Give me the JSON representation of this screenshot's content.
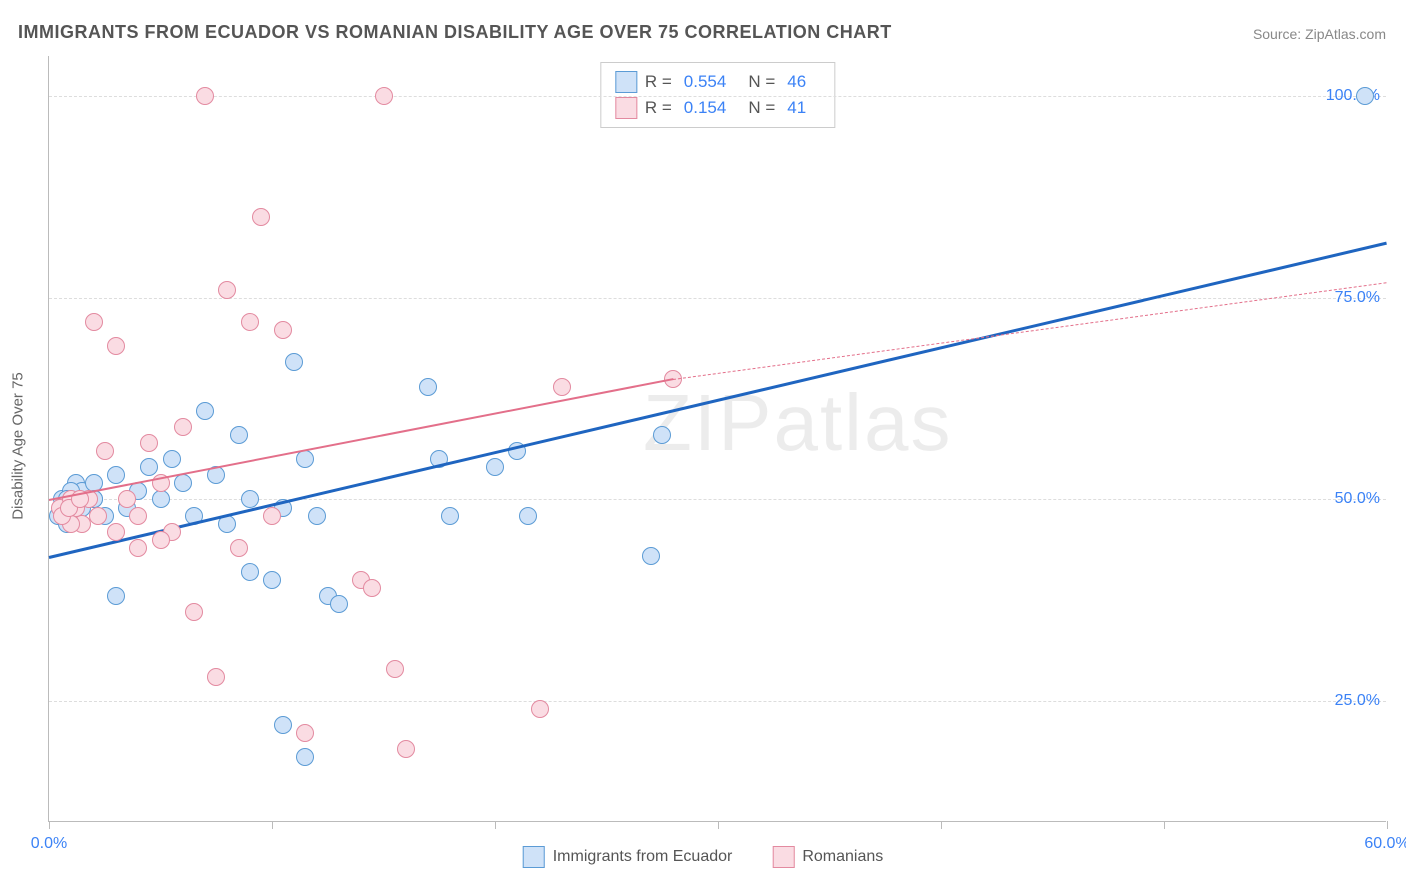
{
  "title": "IMMIGRANTS FROM ECUADOR VS ROMANIAN DISABILITY AGE OVER 75 CORRELATION CHART",
  "source_label": "Source:",
  "source_name": "ZipAtlas.com",
  "y_axis_label": "Disability Age Over 75",
  "watermark": "ZIPatlas",
  "chart": {
    "type": "scatter",
    "background_color": "#ffffff",
    "grid_color": "#dddddd",
    "axis_color": "#bbbbbb",
    "xlim": [
      0,
      60
    ],
    "ylim": [
      10,
      105
    ],
    "x_ticks": [
      0,
      10,
      20,
      30,
      40,
      50,
      60
    ],
    "x_tick_labels": {
      "0": "0.0%",
      "60": "60.0%"
    },
    "y_gridlines": [
      25,
      50,
      75,
      100
    ],
    "y_tick_labels": {
      "25": "25.0%",
      "50": "50.0%",
      "75": "75.0%",
      "100": "100.0%"
    },
    "tick_label_color": "#3b82f6",
    "tick_label_fontsize": 16,
    "axis_label_fontsize": 15,
    "point_radius": 9,
    "point_border_width": 1.5,
    "series": [
      {
        "name": "Immigrants from Ecuador",
        "fill": "#cfe2f8",
        "stroke": "#5b9bd5",
        "trend_color": "#1f65c0",
        "trend_width": 3,
        "trend_dash": "solid",
        "R": "0.554",
        "N": "46",
        "trend": {
          "x1": 0,
          "y1": 43,
          "x2": 60,
          "y2": 82
        },
        "points": [
          [
            0.4,
            48
          ],
          [
            0.6,
            50
          ],
          [
            0.8,
            47
          ],
          [
            1.0,
            49
          ],
          [
            1.2,
            52
          ],
          [
            1.5,
            51
          ],
          [
            2.0,
            50
          ],
          [
            2.5,
            48
          ],
          [
            2.0,
            52
          ],
          [
            3.0,
            53
          ],
          [
            3.5,
            49
          ],
          [
            4.0,
            51
          ],
          [
            4.5,
            54
          ],
          [
            5.0,
            50
          ],
          [
            5.5,
            55
          ],
          [
            3.0,
            38
          ],
          [
            6.0,
            52
          ],
          [
            6.5,
            48
          ],
          [
            7.0,
            61
          ],
          [
            7.5,
            53
          ],
          [
            8.0,
            47
          ],
          [
            8.5,
            58
          ],
          [
            9.0,
            50
          ],
          [
            9.0,
            41
          ],
          [
            10.0,
            40
          ],
          [
            10.5,
            49
          ],
          [
            11.0,
            67
          ],
          [
            11.5,
            55
          ],
          [
            12.0,
            48
          ],
          [
            12.5,
            38
          ],
          [
            13.0,
            37
          ],
          [
            10.5,
            22
          ],
          [
            11.5,
            18
          ],
          [
            17.0,
            64
          ],
          [
            17.5,
            55
          ],
          [
            18.0,
            48
          ],
          [
            20.0,
            54
          ],
          [
            21.0,
            56
          ],
          [
            21.5,
            48
          ],
          [
            27.0,
            43
          ],
          [
            27.5,
            58
          ],
          [
            59.0,
            100
          ],
          [
            2.0,
            50
          ],
          [
            1.5,
            49
          ],
          [
            1.0,
            51
          ],
          [
            0.8,
            50
          ]
        ]
      },
      {
        "name": "Romanians",
        "fill": "#fadce3",
        "stroke": "#e38aa0",
        "trend_color": "#e36f8a",
        "trend_width": 2,
        "trend_dash": "solid",
        "trend_extend_dash": "4,4",
        "R": "0.154",
        "N": "41",
        "trend": {
          "x1": 0,
          "y1": 50,
          "x2": 28,
          "y2": 65
        },
        "trend_ext": {
          "x1": 28,
          "y1": 65,
          "x2": 60,
          "y2": 77
        },
        "points": [
          [
            0.5,
            49
          ],
          [
            0.8,
            48
          ],
          [
            1.0,
            50
          ],
          [
            1.5,
            47
          ],
          [
            2.0,
            72
          ],
          [
            2.5,
            56
          ],
          [
            3.0,
            69
          ],
          [
            3.5,
            50
          ],
          [
            4.0,
            48
          ],
          [
            4.5,
            57
          ],
          [
            5.0,
            52
          ],
          [
            5.5,
            46
          ],
          [
            6.0,
            59
          ],
          [
            6.5,
            36
          ],
          [
            7.0,
            100
          ],
          [
            7.5,
            28
          ],
          [
            8.0,
            76
          ],
          [
            8.5,
            44
          ],
          [
            9.0,
            72
          ],
          [
            9.5,
            85
          ],
          [
            10.0,
            48
          ],
          [
            10.5,
            71
          ],
          [
            11.5,
            21
          ],
          [
            14.0,
            40
          ],
          [
            14.5,
            39
          ],
          [
            15.0,
            100
          ],
          [
            15.5,
            29
          ],
          [
            16.0,
            19
          ],
          [
            22.0,
            24
          ],
          [
            23.0,
            64
          ],
          [
            28.0,
            65
          ],
          [
            1.2,
            49
          ],
          [
            1.8,
            50
          ],
          [
            1.0,
            47
          ],
          [
            2.2,
            48
          ],
          [
            0.6,
            48
          ],
          [
            0.9,
            49
          ],
          [
            1.4,
            50
          ],
          [
            5.0,
            45
          ],
          [
            4.0,
            44
          ],
          [
            3.0,
            46
          ]
        ]
      }
    ]
  },
  "legend_top": {
    "R_label": "R =",
    "N_label": "N ="
  },
  "legend_bottom": [
    {
      "swatch_fill": "#cfe2f8",
      "swatch_stroke": "#5b9bd5",
      "label": "Immigrants from Ecuador"
    },
    {
      "swatch_fill": "#fadce3",
      "swatch_stroke": "#e38aa0",
      "label": "Romanians"
    }
  ]
}
